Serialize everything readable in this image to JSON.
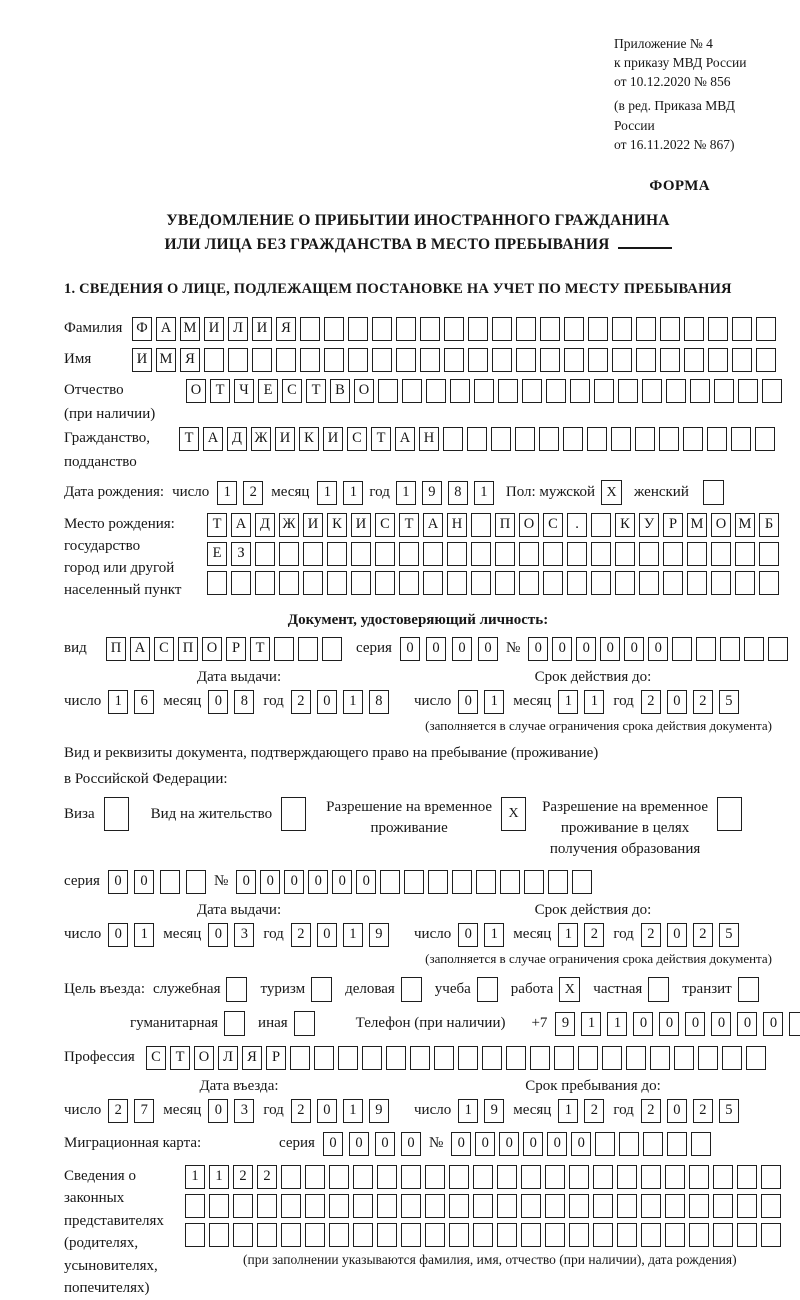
{
  "header": {
    "appendix_line1": "Приложение № 4",
    "appendix_line2": "к приказу МВД России",
    "appendix_line3": "от 10.12.2020 № 856",
    "edition_line1": "(в ред. Приказа МВД России",
    "edition_line2": "от 16.11.2022 № 867)",
    "form_label": "ФОРМА"
  },
  "title": {
    "line1": "УВЕДОМЛЕНИЕ О ПРИБЫТИИ ИНОСТРАННОГО ГРАЖДАНИНА",
    "line2": "ИЛИ ЛИЦА БЕЗ ГРАЖДАНСТВА В МЕСТО ПРЕБЫВАНИЯ"
  },
  "section1_heading": "1. СВЕДЕНИЯ О ЛИЦЕ, ПОДЛЕЖАЩЕМ ПОСТАНОВКЕ НА УЧЕТ ПО МЕСТУ ПРЕБЫВАНИЯ",
  "person": {
    "surname": {
      "label": "Фамилия",
      "value": "ФАМИЛИЯ"
    },
    "name": {
      "label": "Имя",
      "value": "ИМЯ"
    },
    "patronymic": {
      "label": "Отчество",
      "label2": "(при наличии)",
      "value": "ОТЧЕСТВО"
    },
    "citizenship": {
      "label": "Гражданство,",
      "label2": "подданство",
      "value": "ТАДЖИКИСТАН"
    },
    "birth_date": {
      "label": "Дата рождения:",
      "day_label": "число",
      "day": "12",
      "month_label": "месяц",
      "month": "11",
      "year_label": "год",
      "year": "1981"
    },
    "sex": {
      "label": "Пол: мужской",
      "male_mark": "X",
      "female_label": "женский",
      "female_mark": ""
    },
    "birth_place": {
      "label1": "Место рождения:",
      "label2": "государство",
      "label3": "город или другой",
      "label4": "населенный пункт",
      "row1": "ТАДЖИКИСТАН ПОС. КУРМОМБ",
      "row2": "ЕЗ",
      "row3": ""
    }
  },
  "identity_doc": {
    "heading": "Документ, удостоверяющий личность:",
    "kind_label": "вид",
    "kind": "ПАСПОРТ",
    "series_label": "серия",
    "series": "0000",
    "number_label": "№",
    "number": "000000",
    "issue_label": "Дата выдачи:",
    "issue": {
      "day_label": "число",
      "day": "16",
      "month_label": "месяц",
      "month": "08",
      "year_label": "год",
      "year": "2018"
    },
    "valid_label": "Срок действия до:",
    "valid": {
      "day_label": "число",
      "day": "01",
      "month_label": "месяц",
      "month": "11",
      "year_label": "год",
      "year": "2025"
    },
    "note": "(заполняется в случае ограничения срока действия документа)"
  },
  "residence_doc": {
    "intro_line1": "Вид и реквизиты документа, подтверждающего право на пребывание (проживание)",
    "intro_line2": "в Российской Федерации:",
    "visa_label": "Виза",
    "visa_mark": "",
    "residence_permit_label": "Вид на жительство",
    "residence_permit_mark": "",
    "temp_permit_label1": "Разрешение на временное",
    "temp_permit_label2": "проживание",
    "temp_permit_mark": "X",
    "edu_permit_label1": "Разрешение на временное",
    "edu_permit_label2": "проживание в целях",
    "edu_permit_label3": "получения образования",
    "edu_permit_mark": "",
    "series_label": "серия",
    "series": "00",
    "number_label": "№",
    "number": "000000",
    "issue_label": "Дата выдачи:",
    "issue": {
      "day_label": "число",
      "day": "01",
      "month_label": "месяц",
      "month": "03",
      "year_label": "год",
      "year": "2019"
    },
    "valid_label": "Срок действия до:",
    "valid": {
      "day_label": "число",
      "day": "01",
      "month_label": "месяц",
      "month": "12",
      "year_label": "год",
      "year": "2025"
    },
    "note": "(заполняется в случае ограничения срока действия документа)"
  },
  "visit": {
    "label": "Цель въезда:",
    "row1": [
      {
        "label": "служебная",
        "mark": ""
      },
      {
        "label": "туризм",
        "mark": ""
      },
      {
        "label": "деловая",
        "mark": ""
      },
      {
        "label": "учеба",
        "mark": ""
      },
      {
        "label": "работа",
        "mark": "X"
      },
      {
        "label": "частная",
        "mark": ""
      },
      {
        "label": "транзит",
        "mark": ""
      }
    ],
    "row2": [
      {
        "label": "гуманитарная",
        "mark": ""
      },
      {
        "label": "иная",
        "mark": ""
      }
    ],
    "phone_label": "Телефон (при наличии)",
    "phone_prefix": "+7",
    "phone": "911000000"
  },
  "profession": {
    "label": "Профессия",
    "value": "СТОЛЯР"
  },
  "entry": {
    "date_label": "Дата въезда:",
    "date": {
      "day_label": "число",
      "day": "27",
      "month_label": "месяц",
      "month": "03",
      "year_label": "год",
      "year": "2019"
    },
    "stay_label": "Срок пребывания до:",
    "stay": {
      "day_label": "число",
      "day": "19",
      "month_label": "месяц",
      "month": "12",
      "year_label": "год",
      "year": "2025"
    }
  },
  "migration_card": {
    "label": "Миграционная карта:",
    "series_label": "серия",
    "series": "0000",
    "number_label": "№",
    "number": "000000"
  },
  "representatives": {
    "label1": "Сведения о",
    "label2": "законных",
    "label3": "представителях",
    "label4": "(родителях,",
    "label5": "усыновителях,",
    "label6": "попечителях)",
    "row1": "1122",
    "row2": "",
    "row3": "",
    "note": "(при заполнении указываются фамилия, имя, отчество (при наличии), дата рождения)"
  }
}
